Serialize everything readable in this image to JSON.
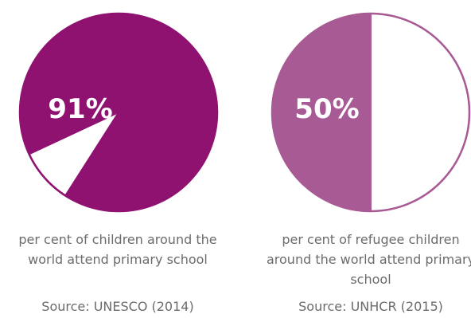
{
  "chart_data": [
    {
      "type": "pie",
      "percent_label": "91%",
      "values": [
        91,
        9
      ],
      "colors": [
        "#8f1170",
        "#ffffff"
      ],
      "outline_color": "#8f1170",
      "caption": "per cent of children around the world attend primary school",
      "source": "Source: UNESCO (2014)"
    },
    {
      "type": "pie",
      "percent_label": "50%",
      "values": [
        50,
        50
      ],
      "colors": [
        "#a85a94",
        "#ffffff"
      ],
      "outline_color": "#a85a94",
      "caption": "per cent of refugee children around the world attend primary school",
      "source": "Source: UNHCR (2015)"
    }
  ]
}
